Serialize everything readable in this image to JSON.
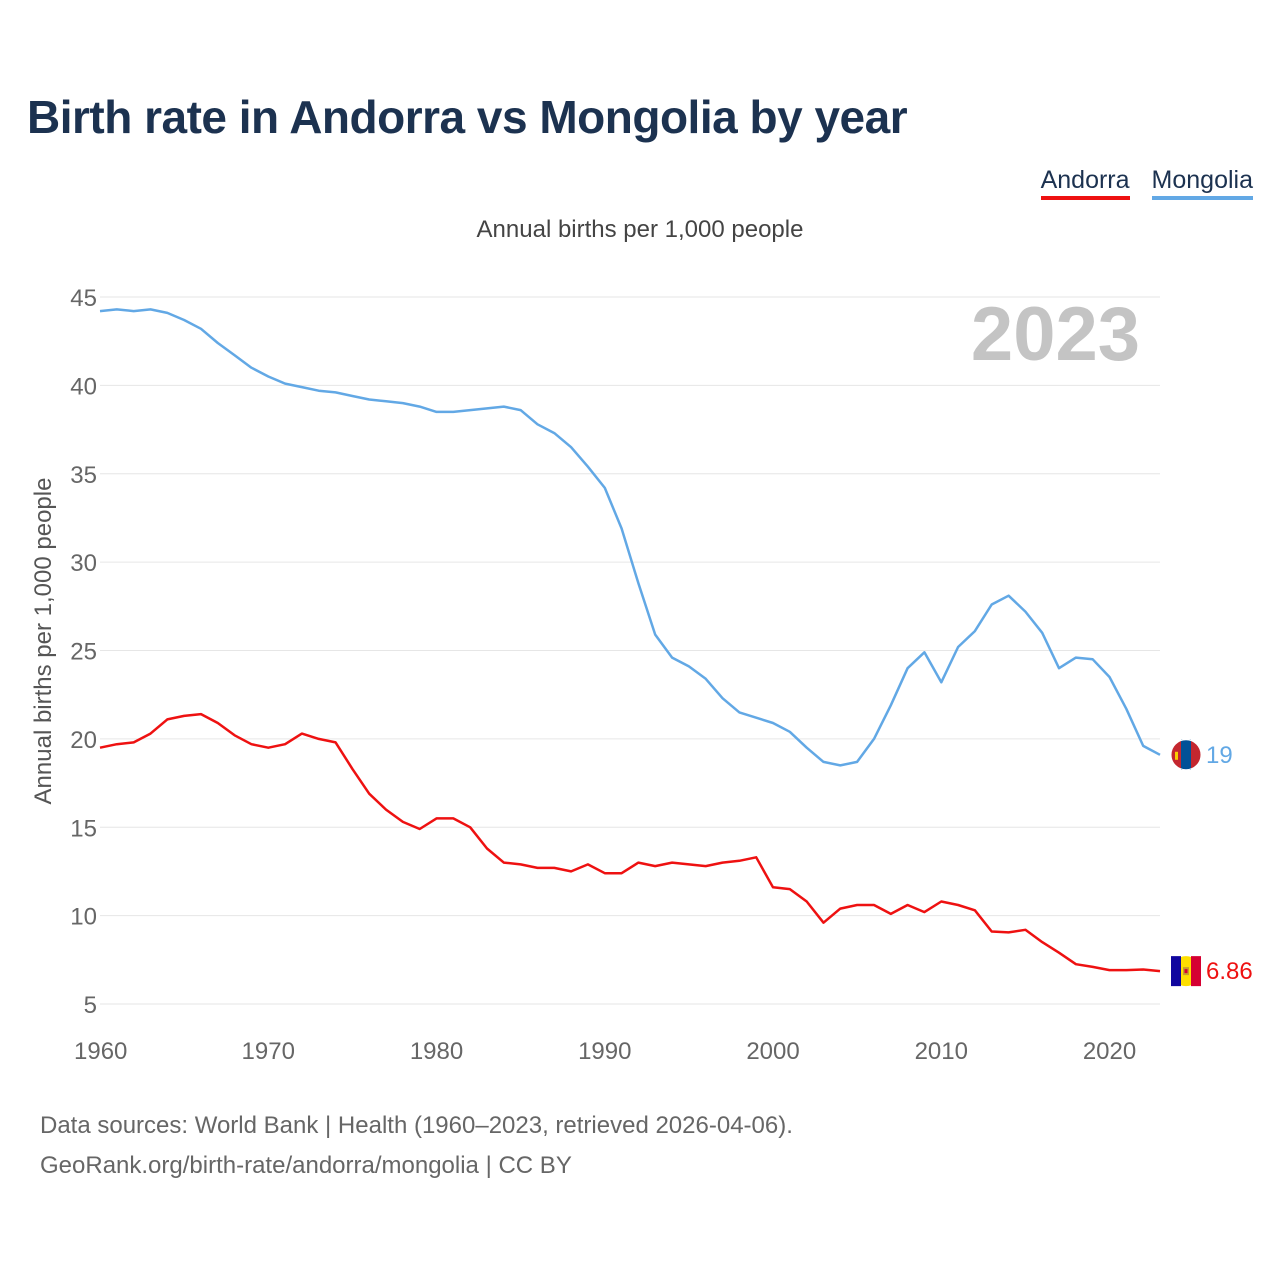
{
  "title": "Birth rate in Andorra vs Mongolia by year",
  "legend": [
    {
      "label": "Andorra",
      "color": "#ee1111"
    },
    {
      "label": "Mongolia",
      "color": "#62a8e5"
    }
  ],
  "subtitle": "Annual births per 1,000 people",
  "year_overlay": "2023",
  "colors": {
    "title": "#1c3250",
    "grid": "#e6e6e6",
    "tick": "#666666",
    "overlay": "#c4c4c4"
  },
  "chart_data": {
    "type": "line",
    "ylabel": "Annual births per 1,000 people",
    "xlabel": "",
    "xlim": [
      1960,
      2023
    ],
    "ylim": [
      5,
      45
    ],
    "yticks": [
      5,
      10,
      15,
      20,
      25,
      30,
      35,
      40,
      45
    ],
    "xticks": [
      1960,
      1970,
      1980,
      1990,
      2000,
      2010,
      2020
    ],
    "x": [
      1960,
      1961,
      1962,
      1963,
      1964,
      1965,
      1966,
      1967,
      1968,
      1969,
      1970,
      1971,
      1972,
      1973,
      1974,
      1975,
      1976,
      1977,
      1978,
      1979,
      1980,
      1981,
      1982,
      1983,
      1984,
      1985,
      1986,
      1987,
      1988,
      1989,
      1990,
      1991,
      1992,
      1993,
      1994,
      1995,
      1996,
      1997,
      1998,
      1999,
      2000,
      2001,
      2002,
      2003,
      2004,
      2005,
      2006,
      2007,
      2008,
      2009,
      2010,
      2011,
      2012,
      2013,
      2014,
      2015,
      2016,
      2017,
      2018,
      2019,
      2020,
      2021,
      2022,
      2023
    ],
    "series": [
      {
        "name": "Mongolia",
        "color": "#62a8e5",
        "end_label": "19",
        "values": [
          44.2,
          44.3,
          44.2,
          44.3,
          44.1,
          43.7,
          43.2,
          42.4,
          41.7,
          41.0,
          40.5,
          40.1,
          39.9,
          39.7,
          39.6,
          39.4,
          39.2,
          39.1,
          39.0,
          38.8,
          38.5,
          38.5,
          38.6,
          38.7,
          38.8,
          38.6,
          37.8,
          37.3,
          36.5,
          35.4,
          34.2,
          31.9,
          28.8,
          25.9,
          24.6,
          24.1,
          23.4,
          22.3,
          21.5,
          21.2,
          20.9,
          20.4,
          19.5,
          18.7,
          18.5,
          18.7,
          20.0,
          21.9,
          24.0,
          24.9,
          23.2,
          25.2,
          26.1,
          27.6,
          28.1,
          27.2,
          26.0,
          24.0,
          24.6,
          24.5,
          23.5,
          21.7,
          19.6,
          19.1
        ]
      },
      {
        "name": "Andorra",
        "color": "#ee1111",
        "end_label": "6.86",
        "values": [
          19.5,
          19.7,
          19.8,
          20.3,
          21.1,
          21.3,
          21.4,
          20.9,
          20.2,
          19.7,
          19.5,
          19.7,
          20.3,
          20.0,
          19.8,
          18.3,
          16.9,
          16.0,
          15.3,
          14.9,
          15.5,
          15.5,
          15.0,
          13.8,
          13.0,
          12.9,
          12.7,
          12.7,
          12.5,
          12.9,
          12.4,
          12.4,
          13.0,
          12.8,
          13.0,
          12.9,
          12.8,
          13.0,
          13.1,
          13.3,
          11.6,
          11.5,
          10.8,
          9.6,
          10.4,
          10.6,
          10.6,
          10.1,
          10.6,
          10.2,
          10.8,
          10.6,
          10.3,
          9.1,
          9.05,
          9.2,
          8.5,
          7.9,
          7.25,
          7.1,
          6.92,
          6.92,
          6.95,
          6.86
        ]
      }
    ]
  },
  "footer": {
    "line1": "Data sources: World Bank | Health (1960–2023, retrieved 2026-04-06).",
    "line2": "GeoRank.org/birth-rate/andorra/mongolia | CC BY"
  }
}
